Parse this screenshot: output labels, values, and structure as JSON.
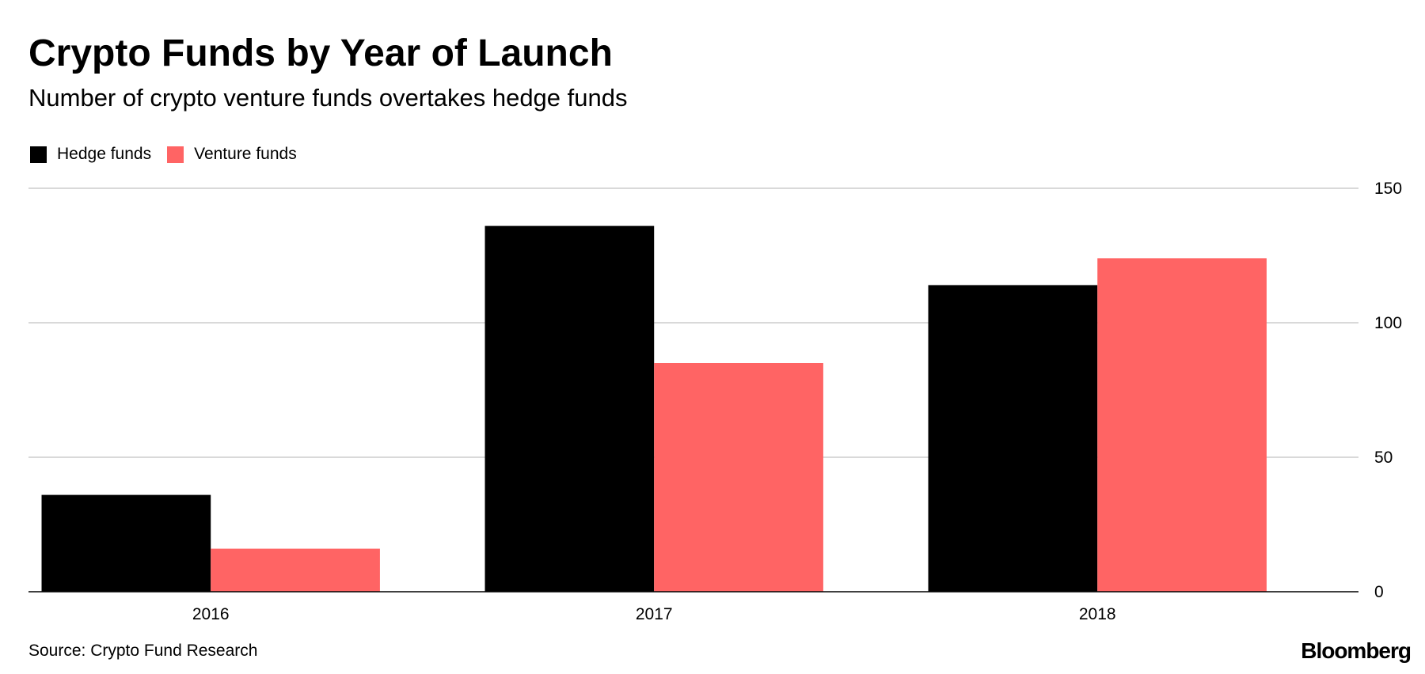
{
  "header": {
    "title": "Crypto Funds by Year of Launch",
    "subtitle": "Number of crypto venture funds overtakes hedge funds"
  },
  "legend": {
    "items": [
      {
        "label": "Hedge funds",
        "color": "#000000"
      },
      {
        "label": "Venture funds",
        "color": "#ff6464"
      }
    ]
  },
  "footer": {
    "source": "Source: Crypto Fund Research",
    "brand": "Bloomberg"
  },
  "chart_data": {
    "type": "bar",
    "title": "Crypto Funds by Year of Launch",
    "subtitle": "Number of crypto venture funds overtakes hedge funds",
    "categories": [
      "2016",
      "2017",
      "2018"
    ],
    "series": [
      {
        "name": "Hedge funds",
        "values": [
          36,
          136,
          114
        ],
        "color": "#000000"
      },
      {
        "name": "Venture funds",
        "values": [
          16,
          85,
          124
        ],
        "color": "#ff6464"
      }
    ],
    "xlabel": "",
    "ylabel": "",
    "ylim": [
      0,
      150
    ],
    "yticks": [
      0,
      50,
      100,
      150
    ],
    "y_axis_side": "right",
    "grid": true,
    "legend_position": "top-left"
  }
}
